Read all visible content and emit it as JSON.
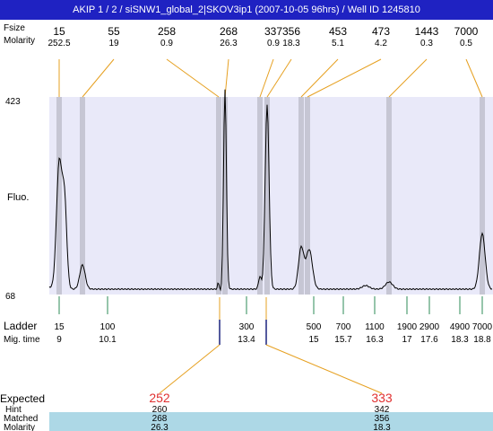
{
  "title": "AKIP 1 / 2 / siSNW1_global_2|SKOV3ip1 (2007-10-05 96hrs) / Well ID 1245810",
  "chart_data": {
    "type": "line",
    "xlabel": "",
    "ylabel": "Fluo.",
    "ylim": [
      68,
      423
    ],
    "y_ticks": [
      "423",
      "68"
    ],
    "header_labels": {
      "size": "Fsize",
      "molarity": "Molarity"
    },
    "peaks": [
      {
        "size": "15",
        "molarity": "252.5"
      },
      {
        "size": "55",
        "molarity": "19"
      },
      {
        "size": "258",
        "molarity": "0.9"
      },
      {
        "size": "268",
        "molarity": "26.3"
      },
      {
        "size": "337",
        "molarity": "0.9"
      },
      {
        "size": "356",
        "molarity": "18.3"
      },
      {
        "size": "453",
        "molarity": "5.1"
      },
      {
        "size": "473",
        "molarity": "4.2"
      },
      {
        "size": "1443",
        "molarity": "0.3"
      },
      {
        "size": "7000",
        "molarity": "0.5"
      }
    ],
    "ladder_label": "Ladder",
    "migtime_label": "Mig. time",
    "ladder": [
      {
        "size": "15",
        "migtime": "9"
      },
      {
        "size": "100",
        "migtime": "10.1"
      },
      {
        "size": "300",
        "migtime": "13.4"
      },
      {
        "size": "500",
        "migtime": "15"
      },
      {
        "size": "700",
        "migtime": "15.7"
      },
      {
        "size": "1100",
        "migtime": "16.3"
      },
      {
        "size": "1900",
        "migtime": "17"
      },
      {
        "size": "2900",
        "migtime": "17.6"
      },
      {
        "size": "4900",
        "migtime": "18.3"
      },
      {
        "size": "7000",
        "migtime": "18.8"
      }
    ],
    "expected": {
      "label": "Expected",
      "row_labels": {
        "hint": "Hint",
        "matched": "Matched",
        "molarity": "Molarity"
      },
      "items": [
        {
          "expected": "252",
          "hint": "260",
          "matched": "268",
          "molarity": "26.3"
        },
        {
          "expected": "333",
          "hint": "342",
          "matched": "356",
          "molarity": "18.3"
        }
      ]
    },
    "colors": {
      "title_bg": "#1f22c2",
      "plot_bg": "#e9e9f9",
      "peak_band": "#c6c6d4",
      "connector": "#e6a020",
      "ladder_tick": "#2e8b57",
      "trace": "#000000",
      "expected_text": "#e03030",
      "row_band": "#add8e6",
      "marker": "#1a237e"
    }
  }
}
